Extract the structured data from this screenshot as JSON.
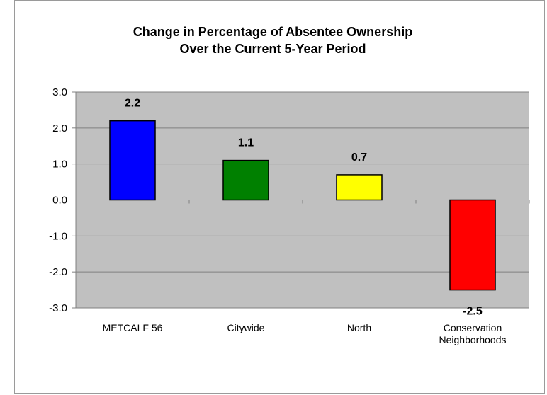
{
  "chart_data": {
    "type": "bar",
    "title_lines": [
      "Change in Percentage of Absentee Ownership",
      "Over the Current 5-Year Period"
    ],
    "categories": [
      [
        "METCALF 56"
      ],
      [
        "Citywide"
      ],
      [
        "North"
      ],
      [
        "Conservation",
        "Neighborhoods"
      ]
    ],
    "values": [
      2.2,
      1.1,
      0.7,
      -2.5
    ],
    "data_labels": [
      "2.2",
      "1.1",
      "0.7",
      "-2.5"
    ],
    "bar_colors": [
      "#0000ff",
      "#008000",
      "#ffff00",
      "#ff0000"
    ],
    "ylim": [
      -3.0,
      3.0
    ],
    "y_ticks": [
      3.0,
      2.0,
      1.0,
      0.0,
      -1.0,
      -2.0,
      -3.0
    ],
    "y_tick_labels": [
      "3.0",
      "2.0",
      "1.0",
      "0.0",
      "-1.0",
      "-2.0",
      "-3.0"
    ],
    "xlabel": "",
    "ylabel": "",
    "grid": true,
    "plot_background": "#c0c0c0"
  }
}
